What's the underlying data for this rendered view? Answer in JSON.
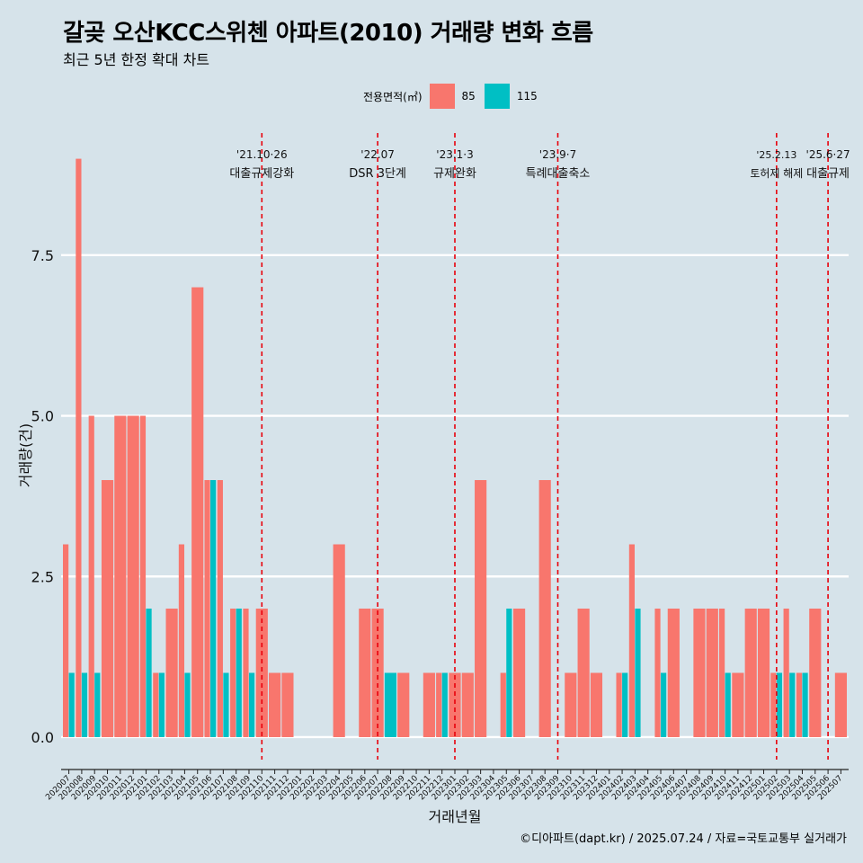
{
  "header": {
    "title": "갈곶 오산KCC스위첸 아파트(2010) 거래량 변화 흐름",
    "subtitle": "최근 5년 한정 확대 차트"
  },
  "legend": {
    "title": "전용면적(㎡)",
    "items": [
      {
        "label": "85",
        "color": "#f8766d"
      },
      {
        "label": "115",
        "color": "#00bfc4"
      }
    ]
  },
  "caption": "©디아파트(dapt.kr) / 2025.07.24 / 자료=국토교통부 실거래가",
  "chart_data": {
    "type": "bar",
    "xlabel": "거래년월",
    "ylabel": "거래량(건)",
    "ylim": [
      -0.35,
      9.4
    ],
    "yticks": [
      0.0,
      2.5,
      5.0,
      7.5
    ],
    "ytick_labels": [
      "0.0",
      "2.5",
      "5.0",
      "7.5"
    ],
    "grid": true,
    "legend_position": "top",
    "categories": [
      "202007",
      "202008",
      "202009",
      "202010",
      "202011",
      "202012",
      "202101",
      "202102",
      "202103",
      "202104",
      "202105",
      "202106",
      "202107",
      "202108",
      "202109",
      "202110",
      "202111",
      "202112",
      "202201",
      "202202",
      "202203",
      "202204",
      "202205",
      "202206",
      "202207",
      "202208",
      "202209",
      "202210",
      "202211",
      "202212",
      "202301",
      "202302",
      "202303",
      "202304",
      "202305",
      "202306",
      "202307",
      "202308",
      "202309",
      "202310",
      "202311",
      "202312",
      "202401",
      "202402",
      "202403",
      "202404",
      "202405",
      "202406",
      "202407",
      "202408",
      "202409",
      "202410",
      "202411",
      "202412",
      "202501",
      "202502",
      "202503",
      "202504",
      "202505",
      "202506",
      "202507"
    ],
    "series": [
      {
        "name": "85",
        "color": "#f8766d",
        "values": [
          3,
          9,
          5,
          4,
          5,
          5,
          5,
          1,
          2,
          3,
          7,
          4,
          4,
          2,
          2,
          2,
          1,
          1,
          0,
          0,
          0,
          3,
          0,
          2,
          2,
          0,
          1,
          0,
          1,
          1,
          1,
          1,
          4,
          0,
          1,
          2,
          0,
          4,
          0,
          1,
          2,
          1,
          0,
          1,
          3,
          0,
          2,
          2,
          0,
          2,
          2,
          2,
          1,
          2,
          2,
          1,
          2,
          1,
          2,
          0,
          1
        ]
      },
      {
        "name": "115",
        "color": "#00bfc4",
        "values": [
          1,
          1,
          1,
          0,
          0,
          0,
          2,
          1,
          0,
          1,
          0,
          4,
          1,
          2,
          1,
          0,
          0,
          0,
          0,
          0,
          0,
          0,
          0,
          0,
          0,
          1,
          0,
          0,
          0,
          1,
          0,
          0,
          0,
          0,
          2,
          0,
          0,
          0,
          0,
          0,
          0,
          0,
          0,
          1,
          2,
          0,
          1,
          0,
          0,
          0,
          0,
          1,
          0,
          0,
          0,
          1,
          1,
          1,
          0,
          0,
          0
        ]
      }
    ],
    "events": [
      {
        "x": "202110",
        "date": "'21.10·26",
        "label": "대출규제강화"
      },
      {
        "x": "202207",
        "date": "'22.07",
        "label": "DSR 3단계"
      },
      {
        "x": "202301",
        "date": "'23.1·3",
        "label": "규제완화"
      },
      {
        "x": "202309",
        "date": "'23.9·7",
        "label": "특례대출축소"
      },
      {
        "x": "202502",
        "date": "'25.2.13",
        "label": "토허제 해제"
      },
      {
        "x": "202506",
        "date": "'25.6·27",
        "label": "대출규제"
      }
    ]
  }
}
